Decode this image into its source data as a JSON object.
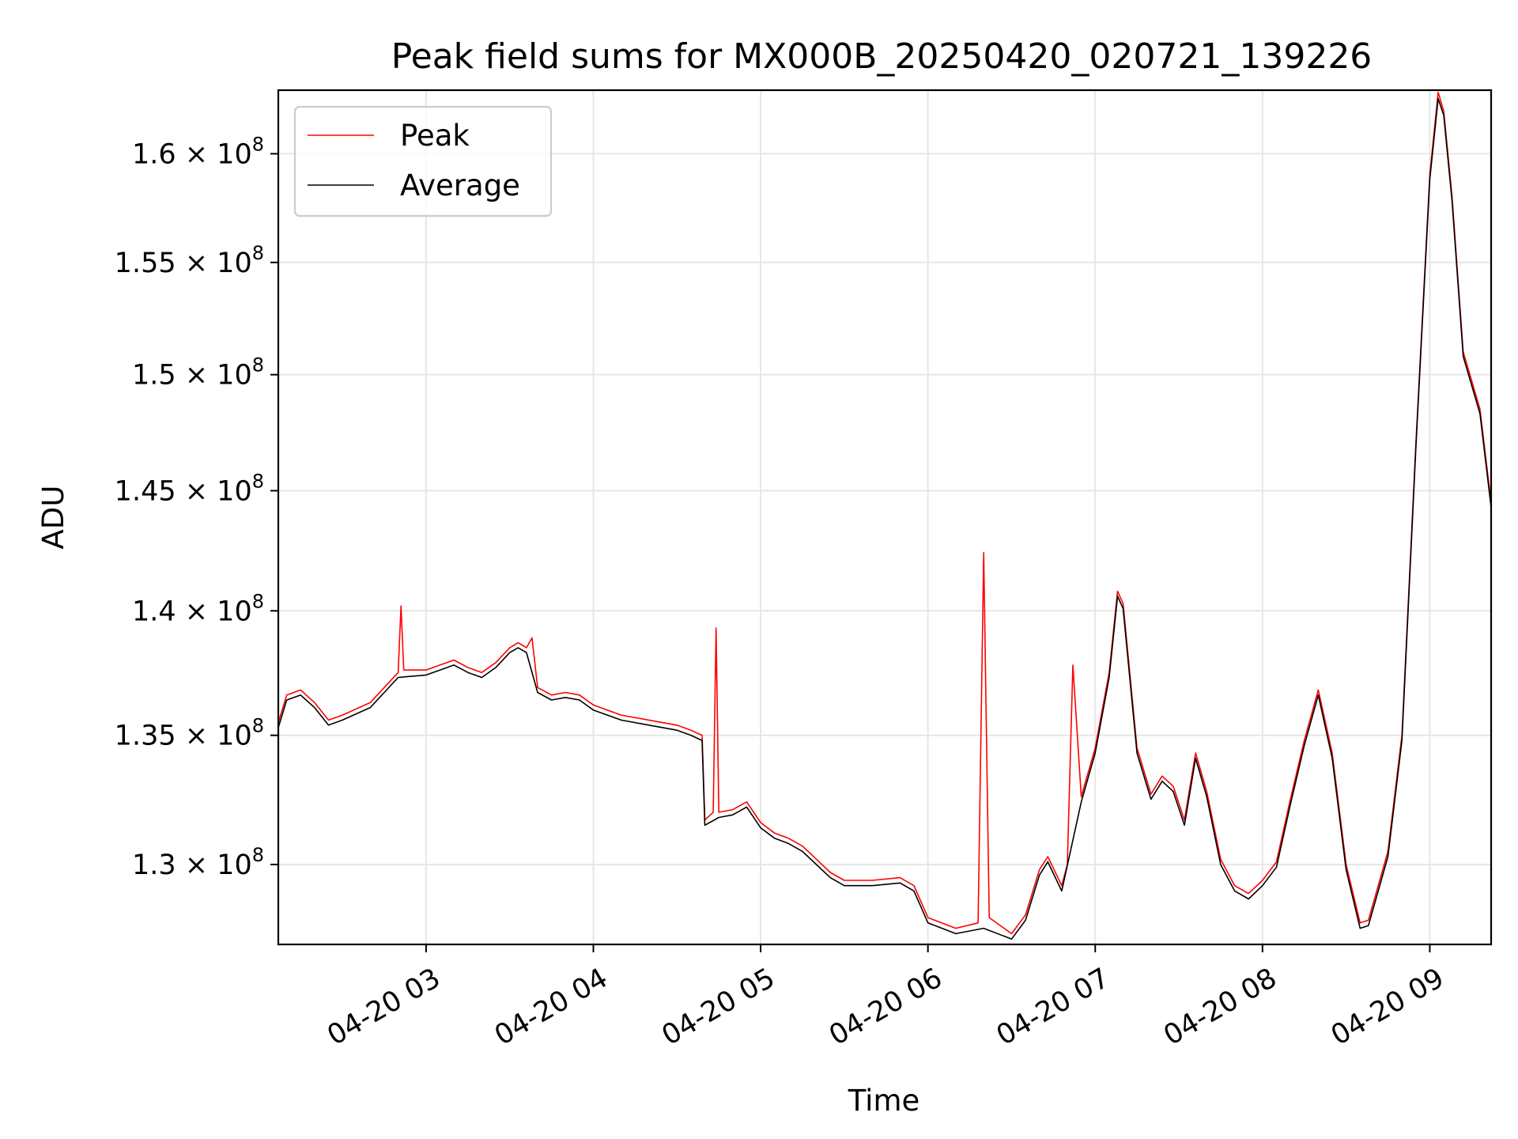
{
  "chart_data": {
    "type": "line",
    "title": "Peak field sums for MX000B_20250420_020721_139226",
    "xlabel": "Time",
    "ylabel": "ADU",
    "x_range": [
      "04-20 02:07",
      "04-20 09:22"
    ],
    "ylim": [
      127000000,
      163000000
    ],
    "y_scale": "log",
    "grid": true,
    "legend_position": "upper left",
    "x_ticks": [
      "04-20 03",
      "04-20 04",
      "04-20 05",
      "04-20 06",
      "04-20 07",
      "04-20 08",
      "04-20 09"
    ],
    "y_ticks": [
      {
        "value": 130000000,
        "mantissa": "1.3",
        "exponent": "8"
      },
      {
        "value": 135000000,
        "mantissa": "1.35",
        "exponent": "8"
      },
      {
        "value": 140000000,
        "mantissa": "1.4",
        "exponent": "8"
      },
      {
        "value": 145000000,
        "mantissa": "1.45",
        "exponent": "8"
      },
      {
        "value": 150000000,
        "mantissa": "1.5",
        "exponent": "8"
      },
      {
        "value": 155000000,
        "mantissa": "1.55",
        "exponent": "8"
      },
      {
        "value": 160000000,
        "mantissa": "1.6",
        "exponent": "8"
      }
    ],
    "series": [
      {
        "name": "Peak",
        "color": "#ff0000",
        "points": [
          [
            "04-20 02:07",
            135.5
          ],
          [
            "04-20 02:10",
            136.6
          ],
          [
            "04-20 02:15",
            136.8
          ],
          [
            "04-20 02:20",
            136.3
          ],
          [
            "04-20 02:25",
            135.6
          ],
          [
            "04-20 02:30",
            135.8
          ],
          [
            "04-20 02:40",
            136.3
          ],
          [
            "04-20 02:45",
            136.9
          ],
          [
            "04-20 02:50",
            137.5
          ],
          [
            "04-20 02:51",
            140.2
          ],
          [
            "04-20 02:52",
            137.6
          ],
          [
            "04-20 03:00",
            137.6
          ],
          [
            "04-20 03:05",
            137.8
          ],
          [
            "04-20 03:10",
            138.0
          ],
          [
            "04-20 03:15",
            137.7
          ],
          [
            "04-20 03:20",
            137.5
          ],
          [
            "04-20 03:25",
            137.9
          ],
          [
            "04-20 03:30",
            138.5
          ],
          [
            "04-20 03:33",
            138.7
          ],
          [
            "04-20 03:36",
            138.5
          ],
          [
            "04-20 03:38",
            138.9
          ],
          [
            "04-20 03:40",
            136.9
          ],
          [
            "04-20 03:45",
            136.6
          ],
          [
            "04-20 03:50",
            136.7
          ],
          [
            "04-20 03:55",
            136.6
          ],
          [
            "04-20 04:00",
            136.2
          ],
          [
            "04-20 04:10",
            135.8
          ],
          [
            "04-20 04:20",
            135.6
          ],
          [
            "04-20 04:30",
            135.4
          ],
          [
            "04-20 04:35",
            135.2
          ],
          [
            "04-20 04:39",
            135.0
          ],
          [
            "04-20 04:40",
            131.7
          ],
          [
            "04-20 04:43",
            132.0
          ],
          [
            "04-20 04:44",
            139.3
          ],
          [
            "04-20 04:45",
            132.0
          ],
          [
            "04-20 04:50",
            132.1
          ],
          [
            "04-20 04:55",
            132.4
          ],
          [
            "04-20 05:00",
            131.6
          ],
          [
            "04-20 05:05",
            131.2
          ],
          [
            "04-20 05:10",
            131.0
          ],
          [
            "04-20 05:15",
            130.7
          ],
          [
            "04-20 05:20",
            130.2
          ],
          [
            "04-20 05:25",
            129.7
          ],
          [
            "04-20 05:30",
            129.4
          ],
          [
            "04-20 05:40",
            129.4
          ],
          [
            "04-20 05:50",
            129.5
          ],
          [
            "04-20 05:55",
            129.2
          ],
          [
            "04-20 06:00",
            128.0
          ],
          [
            "04-20 06:10",
            127.6
          ],
          [
            "04-20 06:18",
            127.8
          ],
          [
            "04-20 06:20",
            142.4
          ],
          [
            "04-20 06:22",
            128.0
          ],
          [
            "04-20 06:30",
            127.4
          ],
          [
            "04-20 06:35",
            128.1
          ],
          [
            "04-20 06:40",
            129.8
          ],
          [
            "04-20 06:43",
            130.3
          ],
          [
            "04-20 06:48",
            129.2
          ],
          [
            "04-20 06:50",
            130.0
          ],
          [
            "04-20 06:52",
            137.8
          ],
          [
            "04-20 06:55",
            132.6
          ],
          [
            "04-20 07:00",
            134.5
          ],
          [
            "04-20 07:05",
            137.5
          ],
          [
            "04-20 07:08",
            140.8
          ],
          [
            "04-20 07:10",
            140.3
          ],
          [
            "04-20 07:15",
            134.5
          ],
          [
            "04-20 07:20",
            132.7
          ],
          [
            "04-20 07:24",
            133.4
          ],
          [
            "04-20 07:28",
            133.0
          ],
          [
            "04-20 07:32",
            131.7
          ],
          [
            "04-20 07:36",
            134.3
          ],
          [
            "04-20 07:40",
            132.8
          ],
          [
            "04-20 07:45",
            130.2
          ],
          [
            "04-20 07:50",
            129.2
          ],
          [
            "04-20 07:55",
            128.9
          ],
          [
            "04-20 08:00",
            129.4
          ],
          [
            "04-20 08:05",
            130.1
          ],
          [
            "04-20 08:10",
            132.5
          ],
          [
            "04-20 08:15",
            134.8
          ],
          [
            "04-20 08:20",
            136.8
          ],
          [
            "04-20 08:25",
            134.3
          ],
          [
            "04-20 08:30",
            130.0
          ],
          [
            "04-20 08:35",
            127.8
          ],
          [
            "04-20 08:38",
            127.9
          ],
          [
            "04-20 08:45",
            130.5
          ],
          [
            "04-20 08:50",
            135.0
          ],
          [
            "04-20 08:55",
            147.0
          ],
          [
            "04-20 09:00",
            159.0
          ],
          [
            "04-20 09:03",
            162.9
          ],
          [
            "04-20 09:05",
            162.0
          ],
          [
            "04-20 09:08",
            158.0
          ],
          [
            "04-20 09:12",
            151.0
          ],
          [
            "04-20 09:18",
            148.5
          ],
          [
            "04-20 09:22",
            144.5
          ]
        ]
      },
      {
        "name": "Average",
        "color": "#000000",
        "points": [
          [
            "04-20 02:07",
            135.3
          ],
          [
            "04-20 02:10",
            136.4
          ],
          [
            "04-20 02:15",
            136.6
          ],
          [
            "04-20 02:20",
            136.1
          ],
          [
            "04-20 02:25",
            135.4
          ],
          [
            "04-20 02:30",
            135.6
          ],
          [
            "04-20 02:40",
            136.1
          ],
          [
            "04-20 02:45",
            136.7
          ],
          [
            "04-20 02:50",
            137.3
          ],
          [
            "04-20 03:00",
            137.4
          ],
          [
            "04-20 03:05",
            137.6
          ],
          [
            "04-20 03:10",
            137.8
          ],
          [
            "04-20 03:15",
            137.5
          ],
          [
            "04-20 03:20",
            137.3
          ],
          [
            "04-20 03:25",
            137.7
          ],
          [
            "04-20 03:30",
            138.3
          ],
          [
            "04-20 03:33",
            138.5
          ],
          [
            "04-20 03:36",
            138.3
          ],
          [
            "04-20 03:40",
            136.7
          ],
          [
            "04-20 03:45",
            136.4
          ],
          [
            "04-20 03:50",
            136.5
          ],
          [
            "04-20 03:55",
            136.4
          ],
          [
            "04-20 04:00",
            136.0
          ],
          [
            "04-20 04:10",
            135.6
          ],
          [
            "04-20 04:20",
            135.4
          ],
          [
            "04-20 04:30",
            135.2
          ],
          [
            "04-20 04:35",
            135.0
          ],
          [
            "04-20 04:39",
            134.8
          ],
          [
            "04-20 04:40",
            131.5
          ],
          [
            "04-20 04:45",
            131.8
          ],
          [
            "04-20 04:50",
            131.9
          ],
          [
            "04-20 04:55",
            132.2
          ],
          [
            "04-20 05:00",
            131.4
          ],
          [
            "04-20 05:05",
            131.0
          ],
          [
            "04-20 05:10",
            130.8
          ],
          [
            "04-20 05:15",
            130.5
          ],
          [
            "04-20 05:20",
            130.0
          ],
          [
            "04-20 05:25",
            129.5
          ],
          [
            "04-20 05:30",
            129.2
          ],
          [
            "04-20 05:40",
            129.2
          ],
          [
            "04-20 05:50",
            129.3
          ],
          [
            "04-20 05:55",
            129.0
          ],
          [
            "04-20 06:00",
            127.8
          ],
          [
            "04-20 06:10",
            127.4
          ],
          [
            "04-20 06:20",
            127.6
          ],
          [
            "04-20 06:30",
            127.2
          ],
          [
            "04-20 06:35",
            127.9
          ],
          [
            "04-20 06:40",
            129.6
          ],
          [
            "04-20 06:43",
            130.1
          ],
          [
            "04-20 06:48",
            129.0
          ],
          [
            "04-20 06:55",
            132.4
          ],
          [
            "04-20 07:00",
            134.3
          ],
          [
            "04-20 07:05",
            137.3
          ],
          [
            "04-20 07:08",
            140.6
          ],
          [
            "04-20 07:10",
            140.1
          ],
          [
            "04-20 07:15",
            134.3
          ],
          [
            "04-20 07:20",
            132.5
          ],
          [
            "04-20 07:24",
            133.2
          ],
          [
            "04-20 07:28",
            132.8
          ],
          [
            "04-20 07:32",
            131.5
          ],
          [
            "04-20 07:36",
            134.1
          ],
          [
            "04-20 07:40",
            132.6
          ],
          [
            "04-20 07:45",
            130.0
          ],
          [
            "04-20 07:50",
            129.0
          ],
          [
            "04-20 07:55",
            128.7
          ],
          [
            "04-20 08:00",
            129.2
          ],
          [
            "04-20 08:05",
            129.9
          ],
          [
            "04-20 08:10",
            132.3
          ],
          [
            "04-20 08:15",
            134.6
          ],
          [
            "04-20 08:20",
            136.6
          ],
          [
            "04-20 08:25",
            134.1
          ],
          [
            "04-20 08:30",
            129.8
          ],
          [
            "04-20 08:35",
            127.6
          ],
          [
            "04-20 08:38",
            127.7
          ],
          [
            "04-20 08:45",
            130.3
          ],
          [
            "04-20 08:50",
            134.8
          ],
          [
            "04-20 08:55",
            146.8
          ],
          [
            "04-20 09:00",
            158.8
          ],
          [
            "04-20 09:03",
            162.6
          ],
          [
            "04-20 09:05",
            161.8
          ],
          [
            "04-20 09:08",
            157.8
          ],
          [
            "04-20 09:12",
            150.8
          ],
          [
            "04-20 09:18",
            148.3
          ],
          [
            "04-20 09:22",
            144.3
          ]
        ]
      }
    ]
  }
}
